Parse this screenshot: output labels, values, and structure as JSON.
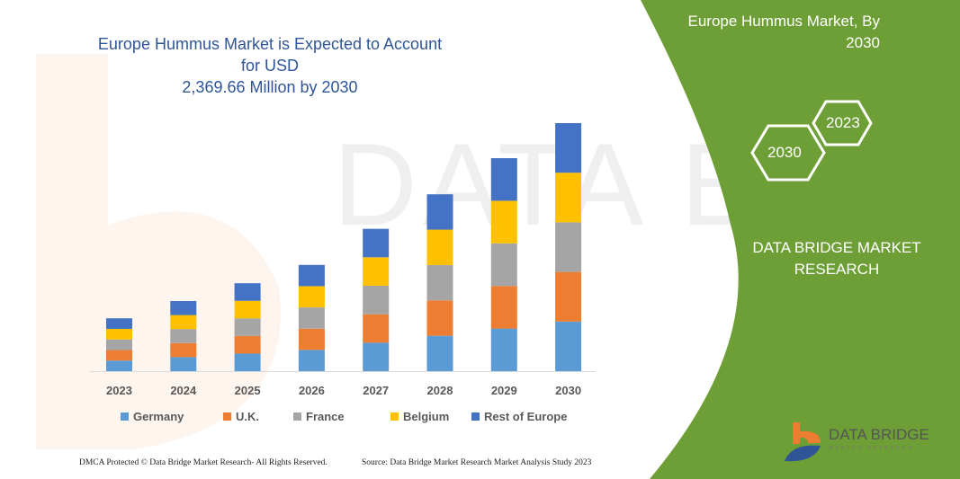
{
  "header": {
    "title_line1": "Europe Hummus Market is Expected to Account for USD",
    "title_line2": "2,369.66 Million by 2030"
  },
  "side_panel": {
    "title_line1": "Europe Hummus Market, By",
    "title_line2": "2030",
    "hex_front": "2030",
    "hex_back": "2023",
    "brand_line1": "DATA BRIDGE MARKET",
    "brand_line2": "RESEARCH",
    "logo_text": "DATA BRIDGE",
    "logo_subtext": "MARKET RESEARCH",
    "background_color": "#6e9e36"
  },
  "footer": {
    "left": "DMCA Protected © Data Bridge Market Research-  All Rights Reserved.",
    "right": "Source: Data Bridge Market Research  Market Analysis Study 2023"
  },
  "chart_data": {
    "type": "bar",
    "stacked": true,
    "title": "Europe Hummus Market is Expected to Account for USD 2,369.66 Million by 2030",
    "categories": [
      "2023",
      "2024",
      "2025",
      "2026",
      "2027",
      "2028",
      "2029",
      "2030"
    ],
    "series": [
      {
        "name": "Germany",
        "color": "#5b9bd5",
        "values": [
          101,
          134,
          168,
          203,
          272,
          338,
          407,
          474
        ]
      },
      {
        "name": "U.K.",
        "color": "#ed7d31",
        "values": [
          101,
          134,
          168,
          203,
          272,
          338,
          407,
          474
        ]
      },
      {
        "name": "France",
        "color": "#a5a5a5",
        "values": [
          101,
          134,
          168,
          203,
          272,
          338,
          407,
          474
        ]
      },
      {
        "name": "Belgium",
        "color": "#ffc000",
        "values": [
          101,
          134,
          168,
          203,
          272,
          338,
          407,
          474
        ]
      },
      {
        "name": "Rest of Europe",
        "color": "#4472c4",
        "values": [
          101,
          134,
          168,
          203,
          272,
          338,
          407,
          474
        ]
      }
    ],
    "ylim": [
      0,
      2400
    ],
    "grid": false,
    "legend": "bottom"
  }
}
